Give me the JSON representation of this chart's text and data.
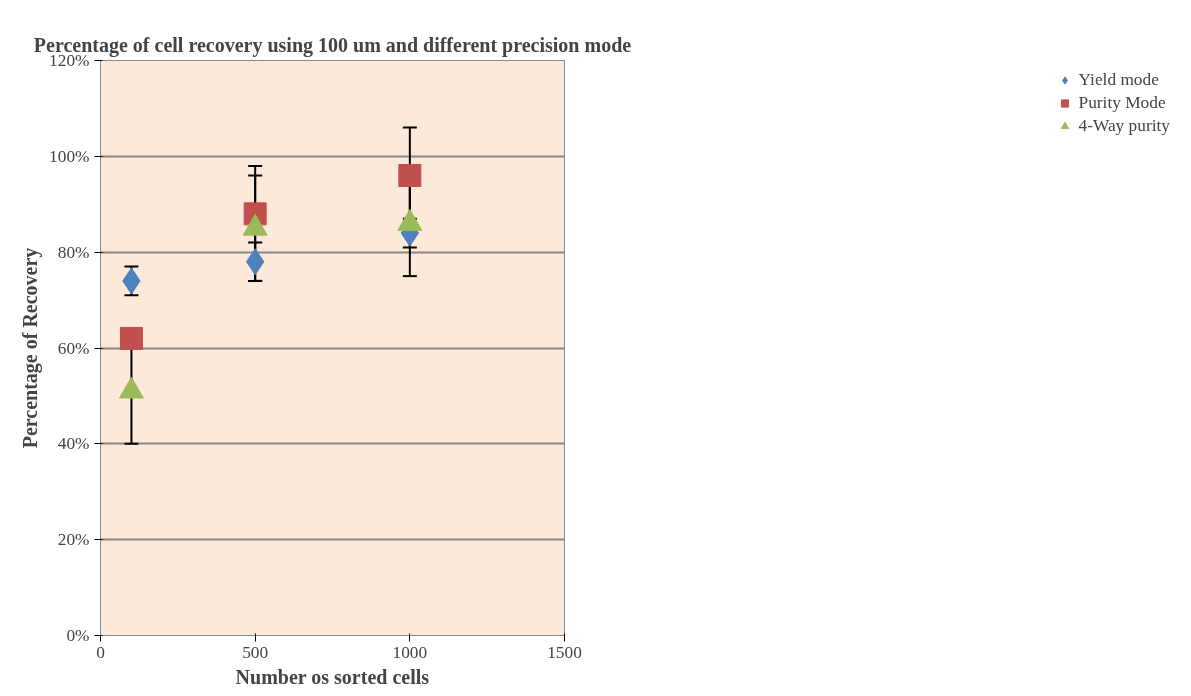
{
  "chart_data": {
    "type": "scatter",
    "title": "Percentage of cell recovery using 100 um and different precision mode",
    "xlabel": "Number os sorted cells",
    "ylabel": "Percentage of Recovery",
    "x": [
      100,
      500,
      1000
    ],
    "series": [
      {
        "name": "Yield mode",
        "color": "#4f81bd",
        "marker": "diamond",
        "values": [
          74,
          78,
          84
        ],
        "errors": [
          3,
          4,
          3
        ]
      },
      {
        "name": "Purity Mode",
        "color": "#c0504d",
        "marker": "square",
        "values": [
          62,
          88,
          96
        ],
        "errors": [
          null,
          10,
          10
        ]
      },
      {
        "name": "4-Way purity",
        "color": "#9bbb59",
        "marker": "triangle",
        "values": [
          51,
          85,
          86
        ],
        "errors": [
          11,
          11,
          11
        ]
      }
    ],
    "xlim": [
      0,
      1500
    ],
    "xticks": [
      0,
      500,
      1000,
      1500
    ],
    "ylim": [
      0,
      120
    ],
    "yticks": [
      {
        "value": 0,
        "label": "0%"
      },
      {
        "value": 20,
        "label": "20%"
      },
      {
        "value": 40,
        "label": "40%"
      },
      {
        "value": 60,
        "label": "60%"
      },
      {
        "value": 80,
        "label": "80%"
      },
      {
        "value": 100,
        "label": "100%"
      },
      {
        "value": 120,
        "label": "120%"
      }
    ],
    "grid": "y",
    "legend": "right"
  }
}
